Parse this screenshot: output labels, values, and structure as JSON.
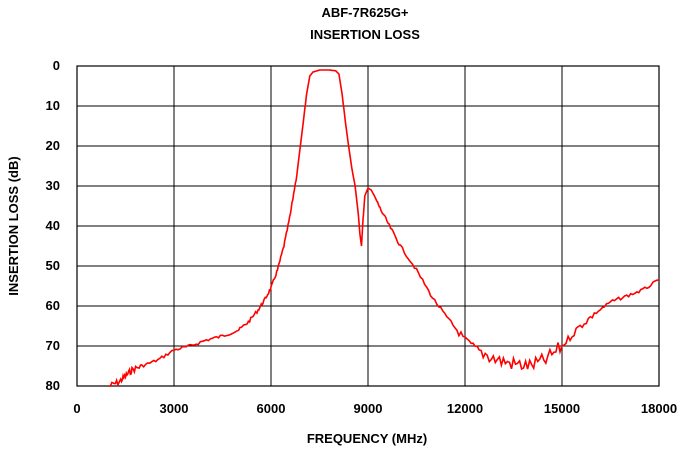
{
  "chart_data": {
    "type": "line",
    "title": "ABF-7R625G+",
    "subtitle": "INSERTION LOSS",
    "xlabel": "FREQUENCY (MHz)",
    "ylabel": "INSERTION LOSS (dB)",
    "xlim": [
      0,
      18000
    ],
    "ylim": [
      0,
      80
    ],
    "y_inverted": true,
    "grid": true,
    "legend": "none",
    "x_ticks": [
      "0",
      "3000",
      "6000",
      "9000",
      "12000",
      "15000",
      "18000"
    ],
    "y_ticks": [
      "0",
      "10",
      "20",
      "30",
      "40",
      "50",
      "60",
      "70",
      "80"
    ],
    "series": [
      {
        "color": "#ff0000",
        "x": [
          1000,
          1300,
          1500,
          1700,
          2000,
          2500,
          3000,
          3500,
          4000,
          4500,
          5000,
          5300,
          5600,
          5800,
          6000,
          6200,
          6400,
          6600,
          6800,
          7000,
          7100,
          7200,
          7300,
          7500,
          7800,
          8000,
          8100,
          8200,
          8300,
          8400,
          8500,
          8600,
          8700,
          8750,
          8800,
          8850,
          8900,
          9000,
          9100,
          9200,
          9400,
          9700,
          10000,
          10500,
          11000,
          11500,
          12000,
          12500,
          13000,
          13500,
          14000,
          14500,
          15000,
          15500,
          16000,
          16500,
          17000,
          17500,
          18000
        ],
        "y": [
          80,
          79,
          77.5,
          76,
          75,
          73.5,
          71,
          70,
          68.5,
          67.5,
          66,
          64,
          61,
          58.5,
          55.5,
          51,
          45,
          37,
          27,
          14,
          7,
          2.5,
          1.5,
          1,
          1,
          1.2,
          2,
          7,
          14,
          20,
          25.5,
          30,
          37,
          42,
          45,
          38,
          32.5,
          30.5,
          31,
          32.5,
          36,
          40.5,
          45,
          51,
          58,
          63.5,
          68.5,
          71.5,
          73.5,
          74.5,
          75,
          73.5,
          70,
          65.5,
          62,
          59,
          57.5,
          56,
          53.5
        ]
      }
    ]
  }
}
